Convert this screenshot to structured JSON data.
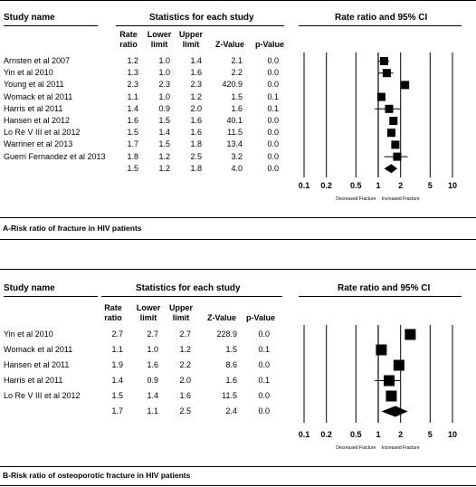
{
  "panels": [
    {
      "id": "A",
      "caption": "A-Risk ratio of fracture in HIV patients",
      "headers": {
        "study": "Study name",
        "stats": "Statistics for each study",
        "plot": "Rate ratio and 95% CI",
        "rate": "Rate ratio",
        "lower": "Lower limit",
        "upper": "Upper limit",
        "z": "Z-Value",
        "p": "p-Value"
      },
      "rows": [
        {
          "study": "Arnsten et al 2007",
          "rate": "1.2",
          "lower": "1.0",
          "upper": "1.4",
          "z": "2.1",
          "p": "0.0"
        },
        {
          "study": "Yin et al 2010",
          "rate": "1.3",
          "lower": "1.0",
          "upper": "1.6",
          "z": "2.2",
          "p": "0.0"
        },
        {
          "study": "Young et al 2011",
          "rate": "2.3",
          "lower": "2.3",
          "upper": "2.3",
          "z": "420.9",
          "p": "0.0"
        },
        {
          "study": "Womack et al 2011",
          "rate": "1.1",
          "lower": "1.0",
          "upper": "1.2",
          "z": "1.5",
          "p": "0.1"
        },
        {
          "study": "Harris et al 2011",
          "rate": "1.4",
          "lower": "0.9",
          "upper": "2.0",
          "z": "1.6",
          "p": "0.1"
        },
        {
          "study": "Hansen et al 2012",
          "rate": "1.6",
          "lower": "1.5",
          "upper": "1.6",
          "z": "40.1",
          "p": "0.0"
        },
        {
          "study": "Lo Re V III et al 2012",
          "rate": "1.5",
          "lower": "1.4",
          "upper": "1.6",
          "z": "11.5",
          "p": "0.0"
        },
        {
          "study": "Warriner et al 2013",
          "rate": "1.7",
          "lower": "1.5",
          "upper": "1.8",
          "z": "13.4",
          "p": "0.0"
        },
        {
          "study": "Guerri Fernandez et al 2013",
          "rate": "1.8",
          "lower": "1.2",
          "upper": "2.5",
          "z": "3.2",
          "p": "0.0"
        }
      ],
      "summary": {
        "study": "",
        "rate": "1.5",
        "lower": "1.2",
        "upper": "1.8",
        "z": "4.0",
        "p": "0.0"
      }
    },
    {
      "id": "B",
      "caption": "B-Risk ratio of osteoporotic fracture in HIV patients",
      "headers": {
        "study": "Study name",
        "stats": "Statistics for each study",
        "plot": "Rate ratio and 95% CI",
        "rate": "Rate ratio",
        "lower": "Lower limit",
        "upper": "Upper limit",
        "z": "Z-Value",
        "p": "p-Value"
      },
      "rows": [
        {
          "study": "Yin et al 2010",
          "rate": "2.7",
          "lower": "2.7",
          "upper": "2.7",
          "z": "228.9",
          "p": "0.0"
        },
        {
          "study": "Womack et al 2011",
          "rate": "1.1",
          "lower": "1.0",
          "upper": "1.2",
          "z": "1.5",
          "p": "0.1"
        },
        {
          "study": "Hansen et al 2011",
          "rate": "1.9",
          "lower": "1.6",
          "upper": "2.2",
          "z": "8.6",
          "p": "0.0"
        },
        {
          "study": "Harris et al 2011",
          "rate": "1.4",
          "lower": "0.9",
          "upper": "2.0",
          "z": "1.6",
          "p": "0.1"
        },
        {
          "study": "Lo Re V III et al 2012",
          "rate": "1.5",
          "lower": "1.4",
          "upper": "1.6",
          "z": "11.5",
          "p": "0.0"
        }
      ],
      "summary": {
        "study": "",
        "rate": "1.7",
        "lower": "1.1",
        "upper": "2.5",
        "z": "2.4",
        "p": "0.0"
      }
    }
  ],
  "chart_data": [
    {
      "type": "forest",
      "panel": "A",
      "scale": "log",
      "xlim": [
        0.1,
        10
      ],
      "ticks": [
        "0.1",
        "0.2",
        "0.5",
        "1",
        "2",
        "5",
        "10"
      ],
      "left_label": "Decreased Fracture",
      "right_label": "Increased Fracture",
      "categories": [
        "Arnsten et al 2007",
        "Yin et al 2010",
        "Young et al 2011",
        "Womack et al 2011",
        "Harris et al 2011",
        "Hansen et al 2012",
        "Lo Re V III et al 2012",
        "Warriner et al 2013",
        "Guerri Fernandez et al 2013"
      ],
      "estimate": [
        1.2,
        1.3,
        2.3,
        1.1,
        1.4,
        1.6,
        1.5,
        1.7,
        1.8
      ],
      "lower": [
        1.0,
        1.0,
        2.3,
        1.0,
        0.9,
        1.5,
        1.4,
        1.5,
        1.2
      ],
      "upper": [
        1.4,
        1.6,
        2.3,
        1.2,
        2.0,
        1.6,
        1.6,
        1.8,
        2.5
      ],
      "summary": {
        "estimate": 1.5,
        "lower": 1.2,
        "upper": 1.8
      }
    },
    {
      "type": "forest",
      "panel": "B",
      "scale": "log",
      "xlim": [
        0.1,
        10
      ],
      "ticks": [
        "0.1",
        "0.2",
        "0.5",
        "1",
        "2",
        "5",
        "10"
      ],
      "left_label": "Decreased Fracture",
      "right_label": "Increased Fracture",
      "categories": [
        "Yin et al 2010",
        "Womack et al 2011",
        "Hansen et al 2011",
        "Harris et al 2011",
        "Lo Re V III et al 2012"
      ],
      "estimate": [
        2.7,
        1.1,
        1.9,
        1.4,
        1.5
      ],
      "lower": [
        2.7,
        1.0,
        1.6,
        0.9,
        1.4
      ],
      "upper": [
        2.7,
        1.2,
        2.2,
        2.0,
        1.6
      ],
      "summary": {
        "estimate": 1.7,
        "lower": 1.1,
        "upper": 2.5
      }
    }
  ]
}
